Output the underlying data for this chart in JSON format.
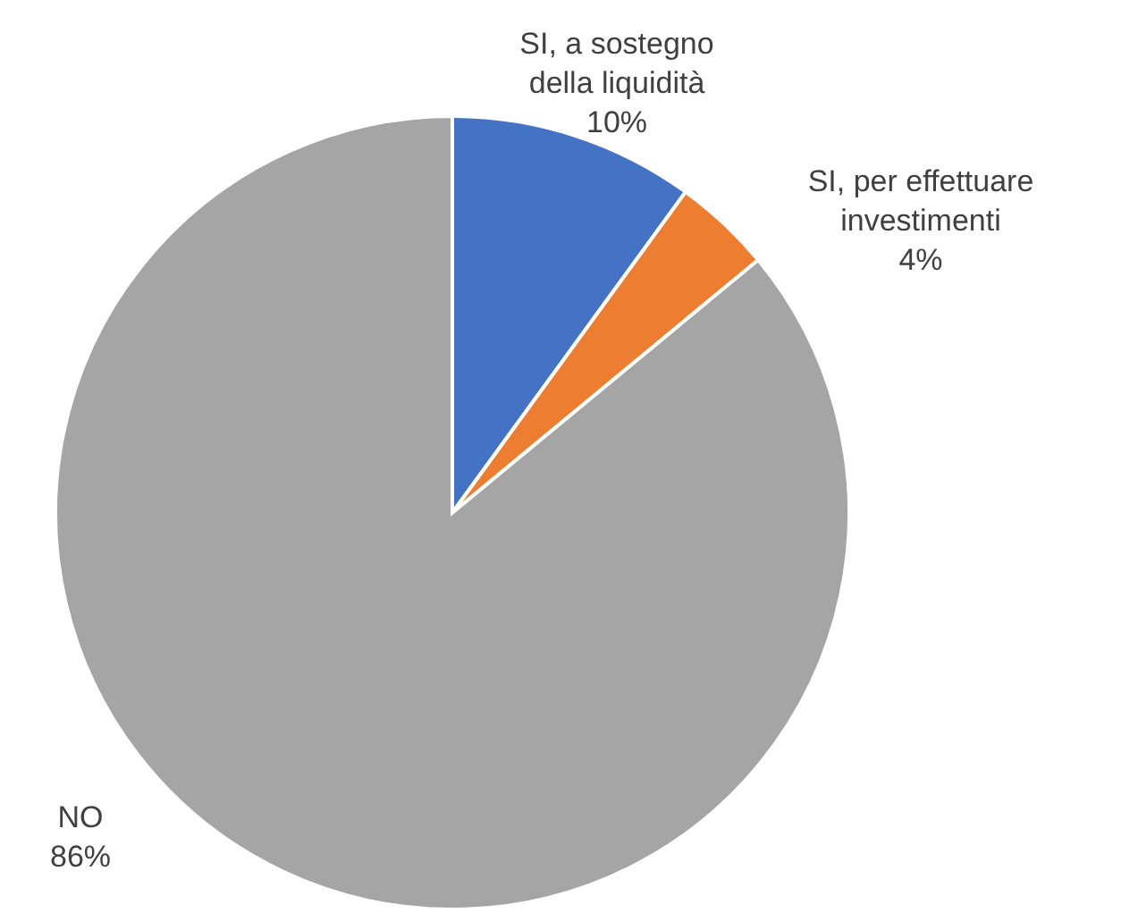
{
  "chart_data": {
    "type": "pie",
    "categories": [
      "SI, a sostegno della liquidità",
      "SI, per effettuare investimenti",
      "NO"
    ],
    "values": [
      10,
      4,
      86
    ],
    "colors": [
      "#4472c4",
      "#ed7d31",
      "#a5a5a5"
    ],
    "value_labels": [
      "10%",
      "4%",
      "86%"
    ]
  }
}
